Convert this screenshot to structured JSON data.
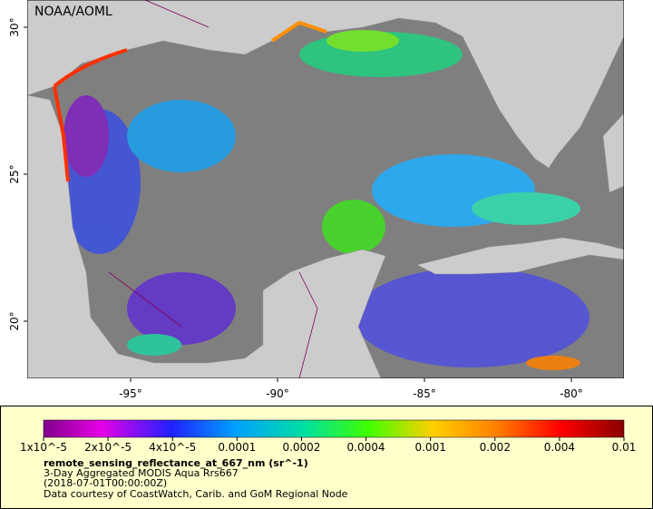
{
  "map": {
    "credit": "NOAA/AOML",
    "lon_ticks": [
      "-95°",
      "-90°",
      "-85°",
      "-80°"
    ],
    "lat_ticks": [
      "20°",
      "25°",
      "30°"
    ]
  },
  "legend": {
    "colorbar_labels": [
      "1x10^-5",
      "2x10^-5",
      "4x10^-5",
      "0.0001",
      "0.0002",
      "0.0004",
      "0.001",
      "0.002",
      "0.004",
      "0.01"
    ],
    "variable": "remote_sensing_reflectance_at_667_nm (sr^-1)",
    "description": "3-Day Aggregated MODIS Aqua Rrs667",
    "time": "(2018-07-01T00:00:00Z)",
    "source": "Data courtesy of CoastWatch, Carib. and GoM Regional Node"
  }
}
